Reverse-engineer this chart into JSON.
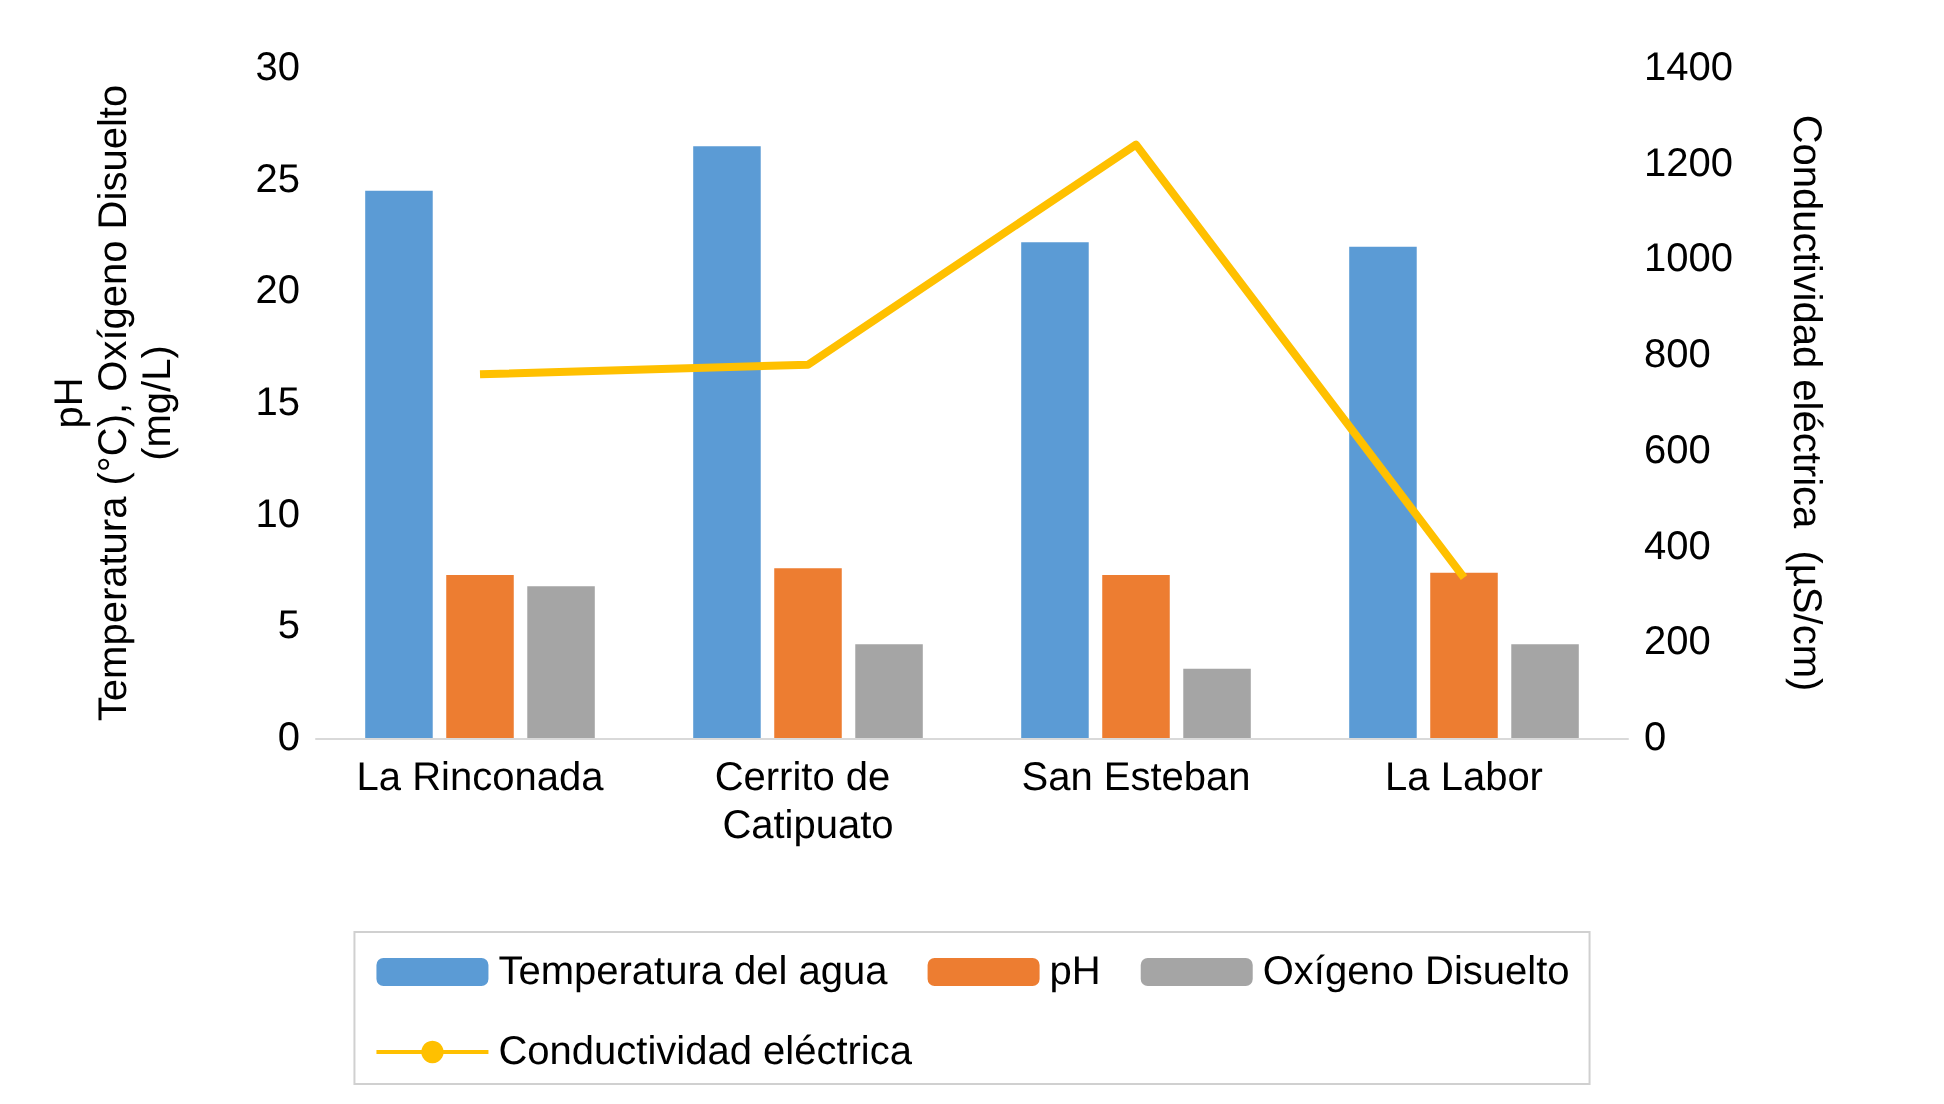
{
  "chart_data": {
    "type": "bar",
    "categories": [
      "La Rinconada",
      "Cerrito de Catipuato",
      "San Esteban",
      "La Labor"
    ],
    "ylabel": "pH\nTemperatura (°C), Oxígeno Disuelto\n(mg/L)",
    "y2label": "Conductividad eléctrica  (µS/cm)",
    "series": [
      {
        "name": "Temperatura del agua",
        "color": "#5b9bd5",
        "values": [
          24.5,
          26.5,
          22.2,
          22.0
        ]
      },
      {
        "name": "pH",
        "color": "#ed7d31",
        "values": [
          7.3,
          7.6,
          7.3,
          7.4
        ]
      },
      {
        "name": "Oxígeno Disuelto",
        "color": "#a5a5a5",
        "values": [
          6.8,
          4.2,
          3.1,
          4.2
        ]
      },
      {
        "name": "Conductividad eléctrica",
        "type": "line",
        "axis": "y2",
        "color": "#ffc000",
        "values": [
          760,
          780,
          1240,
          335
        ]
      }
    ],
    "ylim": [
      0,
      30
    ],
    "yticks": [
      0,
      5,
      10,
      15,
      20,
      25,
      30
    ],
    "y2lim": [
      0,
      1400
    ],
    "y2ticks": [
      0,
      200,
      400,
      600,
      800,
      1000,
      1200,
      1400
    ],
    "grid": false,
    "legend": "bottom",
    "marker": "none"
  }
}
